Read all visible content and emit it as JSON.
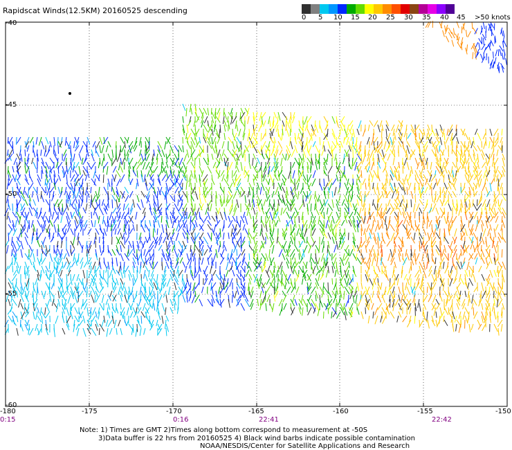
{
  "title": "Rapidscat Winds(12.5KM) 20160525 descending",
  "colorbar": {
    "colors": [
      "#303030",
      "#808080",
      "#00c8f0",
      "#0096ff",
      "#0028ff",
      "#00aa00",
      "#64dc00",
      "#ffff00",
      "#ffc800",
      "#ff8c00",
      "#ff5000",
      "#e10000",
      "#8b4513",
      "#b40096",
      "#e600e6",
      "#8c00ff",
      "#500096"
    ],
    "labels": [
      "0",
      "5",
      "10",
      "15",
      "20",
      "25",
      "30",
      "35",
      "40",
      "45",
      ">50 knots"
    ]
  },
  "map": {
    "lon_range": [
      -180,
      -150
    ],
    "lat_range": [
      -40,
      -60
    ],
    "lat_labels": [
      "-40",
      "-45",
      "-50",
      "-55",
      "-60"
    ],
    "lon_labels": [
      "-180",
      "-175",
      "-170",
      "-165",
      "-160",
      "-155",
      "-150"
    ],
    "time_labels": [
      "0:15",
      "0:16",
      "22:41",
      "22:42"
    ]
  },
  "notes": {
    "line1": "Note: 1) Times are GMT 2)Times along bottom correspond to measurement at -50S",
    "line2": "3)Data buffer is 22 hrs from 20160525 4) Black wind barbs indicate possible contamination",
    "line3": "NOAA/NESDIS/Center for Satellite Applications and Research"
  }
}
